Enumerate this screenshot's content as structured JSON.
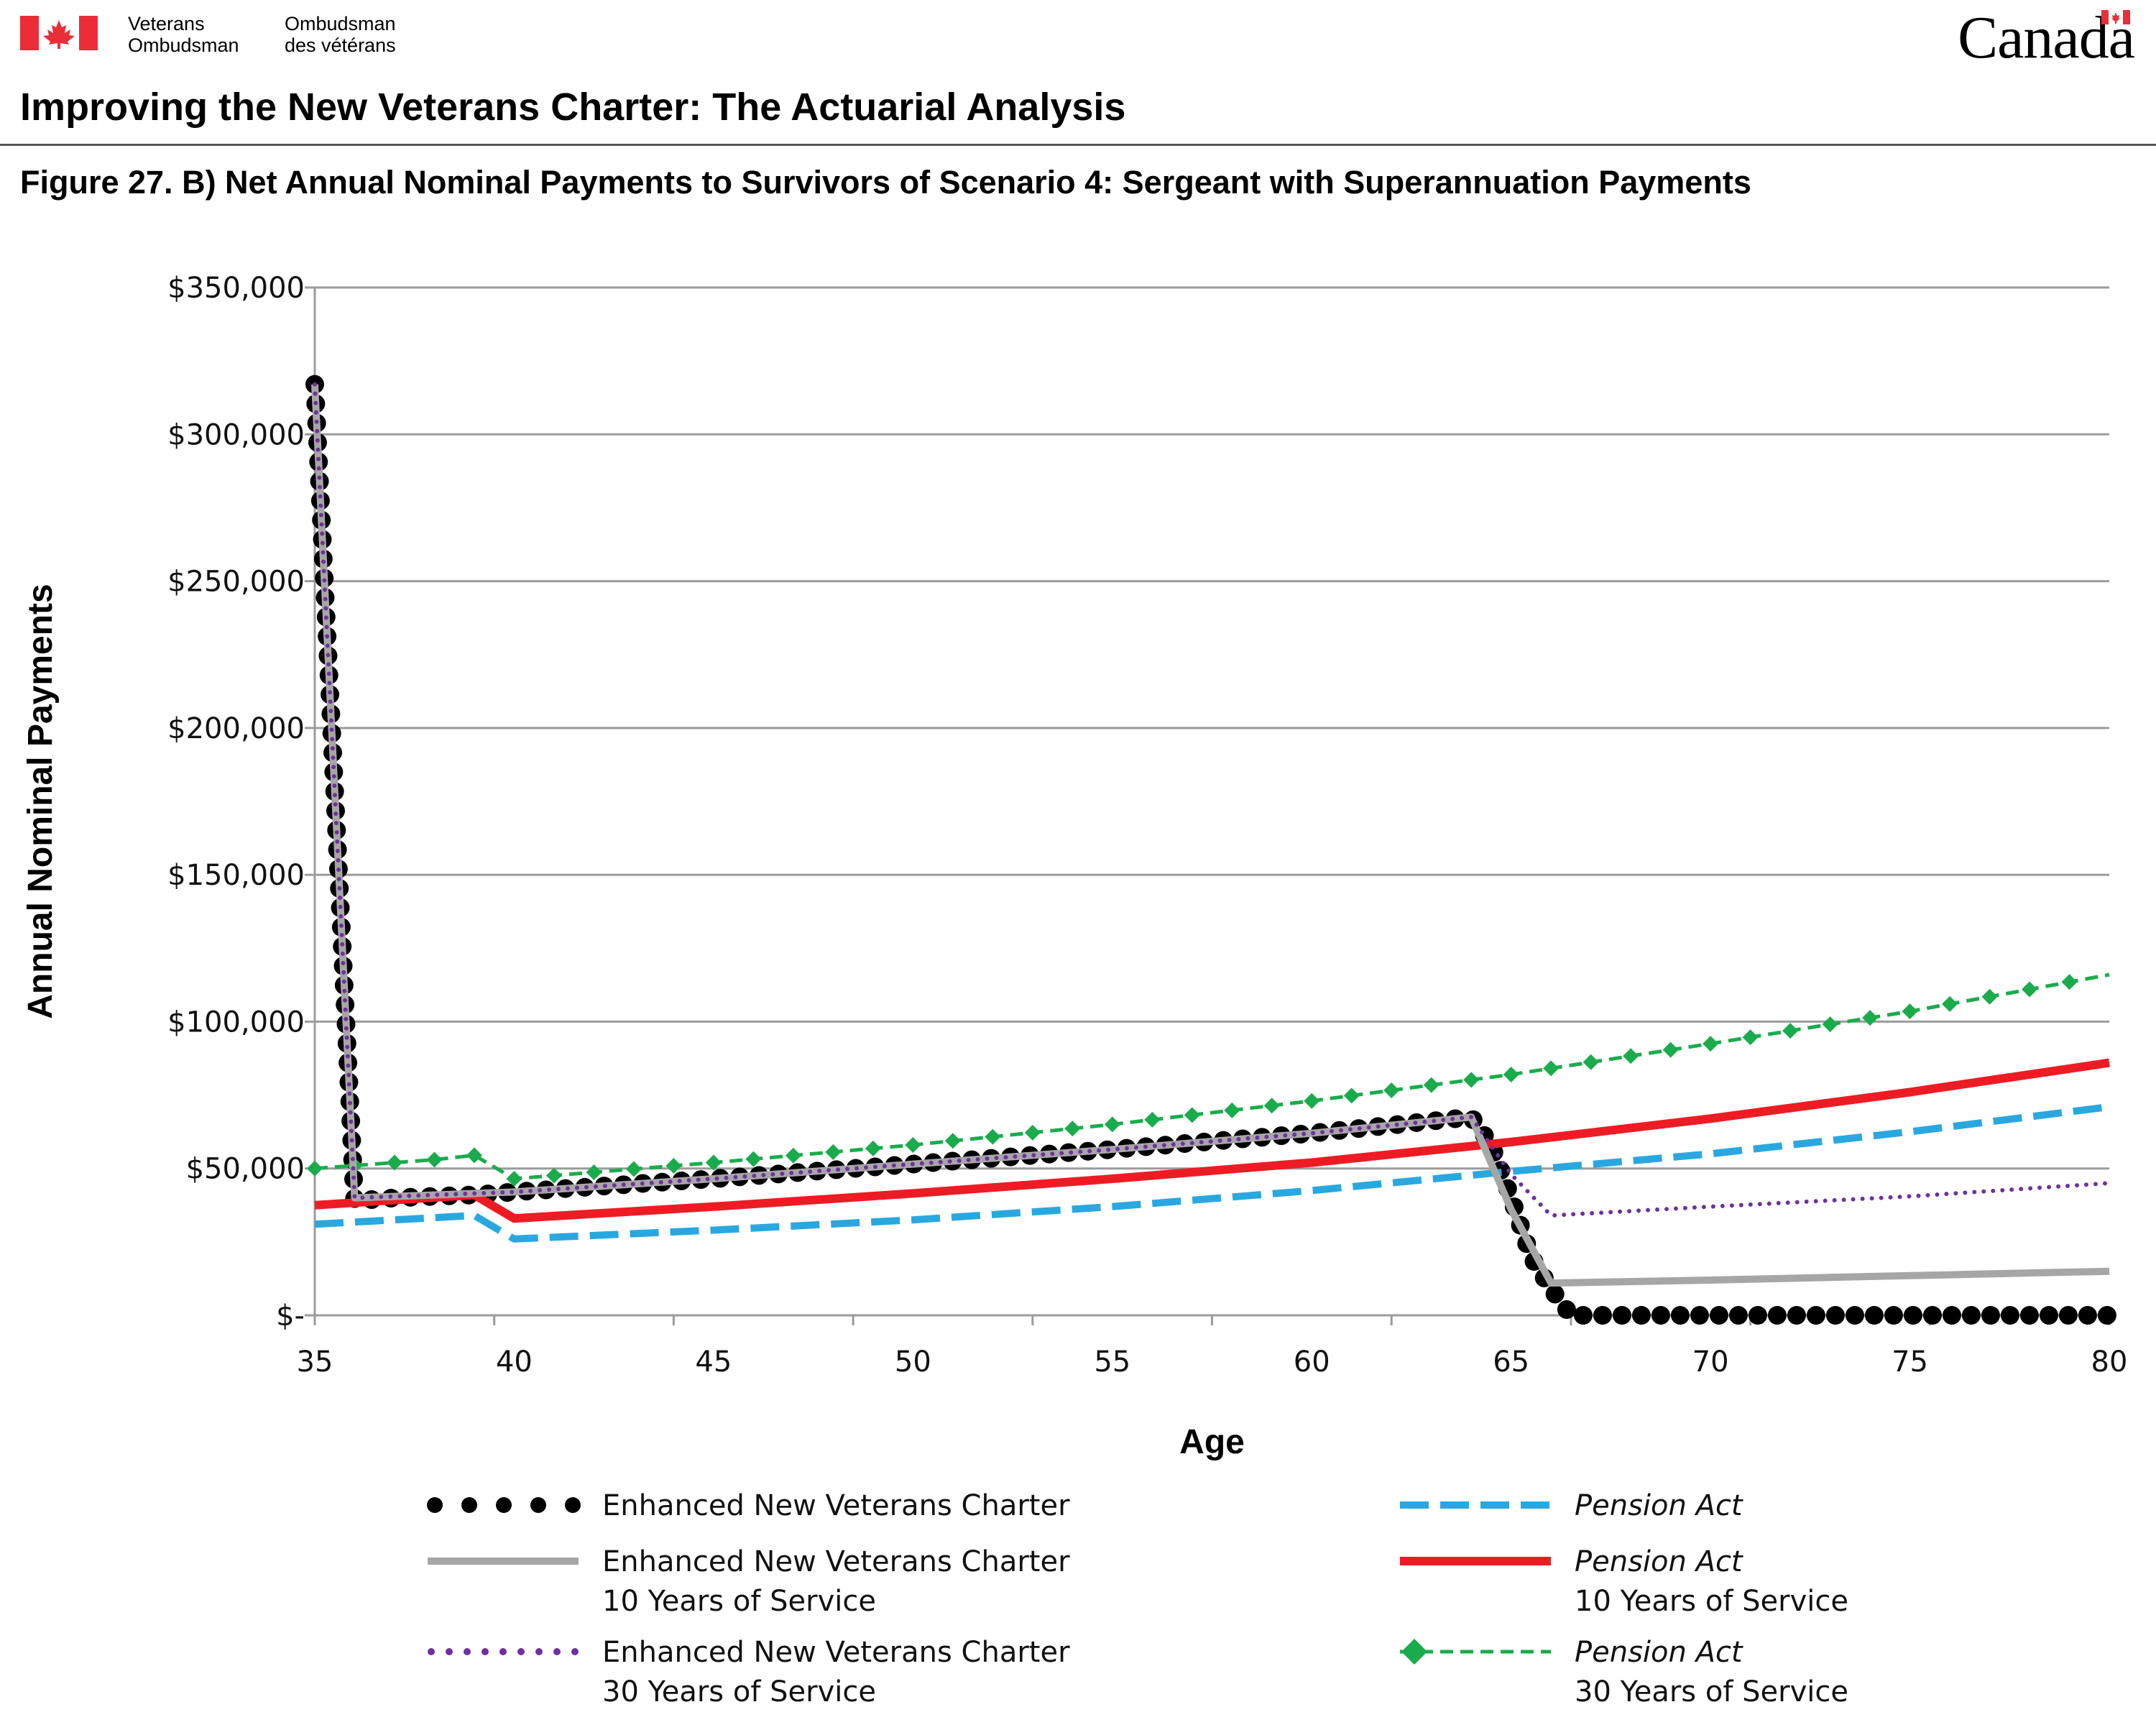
{
  "header": {
    "org_en_1": "Veterans",
    "org_en_2": "Ombudsman",
    "org_fr_1": "Ombudsman",
    "org_fr_2": "des vétérans",
    "wordmark": "Canada",
    "document_title": "Improving the New Veterans Charter: The Actuarial Analysis",
    "figure_title": "Figure 27. B) Net Annual Nominal Payments to Survivors of Scenario 4: Sergeant with Superannuation Payments"
  },
  "colors": {
    "flag_red": "#eb2d37",
    "grid": "#9b9b9b",
    "enhanced": "#000000",
    "enhanced10": "#a6a6a6",
    "enhanced30": "#7030a0",
    "pension": "#29a8e0",
    "pension10": "#ed1c24",
    "pension30": "#1aac4c"
  },
  "chart_data": {
    "type": "line",
    "xlabel": "Age",
    "ylabel": "Annual Nominal Payments",
    "xlim": [
      35,
      80
    ],
    "ylim": [
      0,
      350000
    ],
    "x_ticks": [
      "35",
      "40",
      "45",
      "50",
      "55",
      "60",
      "65",
      "70",
      "75",
      "80"
    ],
    "y_ticks": [
      "$-",
      "$50,000",
      "$100,000",
      "$150,000",
      "$200,000",
      "$250,000",
      "$300,000",
      "$350,000"
    ],
    "grid": "horizontal",
    "legend_position": "bottom",
    "series": [
      {
        "key": "enhanced",
        "legend_line1": "Enhanced New Veterans Charter",
        "legend_line2": "",
        "italic": false,
        "points": [
          [
            35,
            317000
          ],
          [
            36,
            39000
          ],
          [
            37,
            40000
          ],
          [
            38,
            40500
          ],
          [
            39,
            41000
          ],
          [
            40,
            42000
          ],
          [
            45,
            46500
          ],
          [
            50,
            51500
          ],
          [
            55,
            56500
          ],
          [
            60,
            62000
          ],
          [
            64,
            67500
          ],
          [
            64.5,
            58000
          ],
          [
            65,
            40000
          ],
          [
            65.5,
            20000
          ],
          [
            66,
            9000
          ],
          [
            66.5,
            0
          ],
          [
            80,
            0
          ]
        ]
      },
      {
        "key": "enhanced10",
        "legend_line1": "Enhanced New Veterans Charter",
        "legend_line2": "10 Years of Service",
        "italic": false,
        "points": [
          [
            35,
            317000
          ],
          [
            36,
            40000
          ],
          [
            40,
            42000
          ],
          [
            45,
            46500
          ],
          [
            50,
            51500
          ],
          [
            55,
            56500
          ],
          [
            60,
            62000
          ],
          [
            64,
            67500
          ],
          [
            65,
            36000
          ],
          [
            66,
            11000
          ],
          [
            70,
            12000
          ],
          [
            75,
            13500
          ],
          [
            80,
            15000
          ]
        ]
      },
      {
        "key": "enhanced30",
        "legend_line1": "Enhanced New Veterans Charter",
        "legend_line2": "30 Years of Service",
        "italic": false,
        "points": [
          [
            35,
            317000
          ],
          [
            36,
            40000
          ],
          [
            40,
            42000
          ],
          [
            45,
            46500
          ],
          [
            50,
            51500
          ],
          [
            55,
            56500
          ],
          [
            60,
            62000
          ],
          [
            64,
            67500
          ],
          [
            65,
            48000
          ],
          [
            66,
            34000
          ],
          [
            70,
            37000
          ],
          [
            75,
            40500
          ],
          [
            80,
            45000
          ]
        ]
      },
      {
        "key": "pension",
        "legend_line1": "Pension Act",
        "legend_line2": "",
        "italic": true,
        "points": [
          [
            35,
            31000
          ],
          [
            39,
            34000
          ],
          [
            40,
            26000
          ],
          [
            45,
            29000
          ],
          [
            50,
            32500
          ],
          [
            55,
            37000
          ],
          [
            60,
            42500
          ],
          [
            65,
            49000
          ],
          [
            70,
            55000
          ],
          [
            75,
            62500
          ],
          [
            80,
            71000
          ]
        ]
      },
      {
        "key": "pension10",
        "legend_line1": "Pension Act",
        "legend_line2": "10 Years of Service",
        "italic": true,
        "points": [
          [
            35,
            37500
          ],
          [
            39,
            41000
          ],
          [
            40,
            33000
          ],
          [
            45,
            37000
          ],
          [
            50,
            41500
          ],
          [
            55,
            46500
          ],
          [
            60,
            52000
          ],
          [
            65,
            59000
          ],
          [
            70,
            67000
          ],
          [
            75,
            76000
          ],
          [
            80,
            86000
          ]
        ]
      },
      {
        "key": "pension30",
        "legend_line1": "Pension Act",
        "legend_line2": "30 Years of Service",
        "italic": true,
        "points": [
          [
            35,
            50000
          ],
          [
            36,
            51000
          ],
          [
            37,
            52000
          ],
          [
            38,
            53000
          ],
          [
            39,
            54500
          ],
          [
            40,
            46500
          ],
          [
            45,
            52000
          ],
          [
            50,
            58000
          ],
          [
            55,
            65000
          ],
          [
            60,
            73000
          ],
          [
            65,
            82000
          ],
          [
            70,
            92500
          ],
          [
            75,
            103500
          ],
          [
            80,
            116000
          ]
        ]
      }
    ]
  }
}
